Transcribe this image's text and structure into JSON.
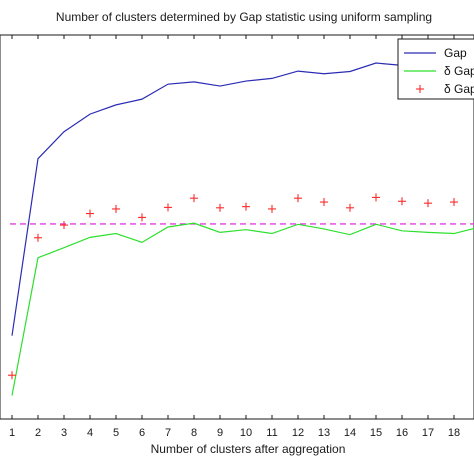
{
  "chart_data": {
    "type": "line",
    "title": "Number of clusters determined by Gap statistic using  uniform sampling",
    "xlabel": "Number of clusters after aggregation",
    "ylabel": "",
    "x": [
      1,
      2,
      3,
      4,
      5,
      6,
      7,
      8,
      9,
      10,
      11,
      12,
      13,
      14,
      15,
      16,
      17,
      18,
      19
    ],
    "xlim": [
      0.5,
      19
    ],
    "ylim": [
      0,
      1
    ],
    "grid": false,
    "legend_position": "top-right",
    "threshold_line": {
      "y": 0.508,
      "color": "#e040e0",
      "style": "dashed"
    },
    "series": [
      {
        "name": "Gap",
        "style": "line",
        "color": "#2b2bb5",
        "values": [
          0.217,
          0.678,
          0.748,
          0.794,
          0.818,
          0.833,
          0.872,
          0.878,
          0.867,
          0.88,
          0.887,
          0.906,
          0.899,
          0.905,
          0.927,
          0.921,
          0.925,
          0.935,
          0.945
        ]
      },
      {
        "name": "δ Gap",
        "style": "line",
        "color": "#2ee02e",
        "values": [
          0.061,
          0.42,
          0.446,
          0.473,
          0.483,
          0.46,
          0.5,
          0.51,
          0.486,
          0.493,
          0.483,
          0.507,
          0.495,
          0.48,
          0.507,
          0.49,
          0.486,
          0.483,
          0.5
        ]
      },
      {
        "name": "δ Gap",
        "style": "marker",
        "marker": "+",
        "color": "#ff2a2a",
        "values": [
          0.114,
          0.472,
          0.505,
          0.535,
          0.547,
          0.525,
          0.551,
          0.575,
          0.55,
          0.553,
          0.547,
          0.575,
          0.565,
          0.55,
          0.577,
          0.567,
          0.562,
          0.565,
          0.57
        ]
      }
    ],
    "legend": [
      {
        "label": "Gap",
        "key": "line",
        "color": "#2b2bb5"
      },
      {
        "label": "δ Gap",
        "key": "line",
        "color": "#2ee02e"
      },
      {
        "label": "δ Gap",
        "key": "marker",
        "color": "#ff2a2a"
      }
    ]
  }
}
